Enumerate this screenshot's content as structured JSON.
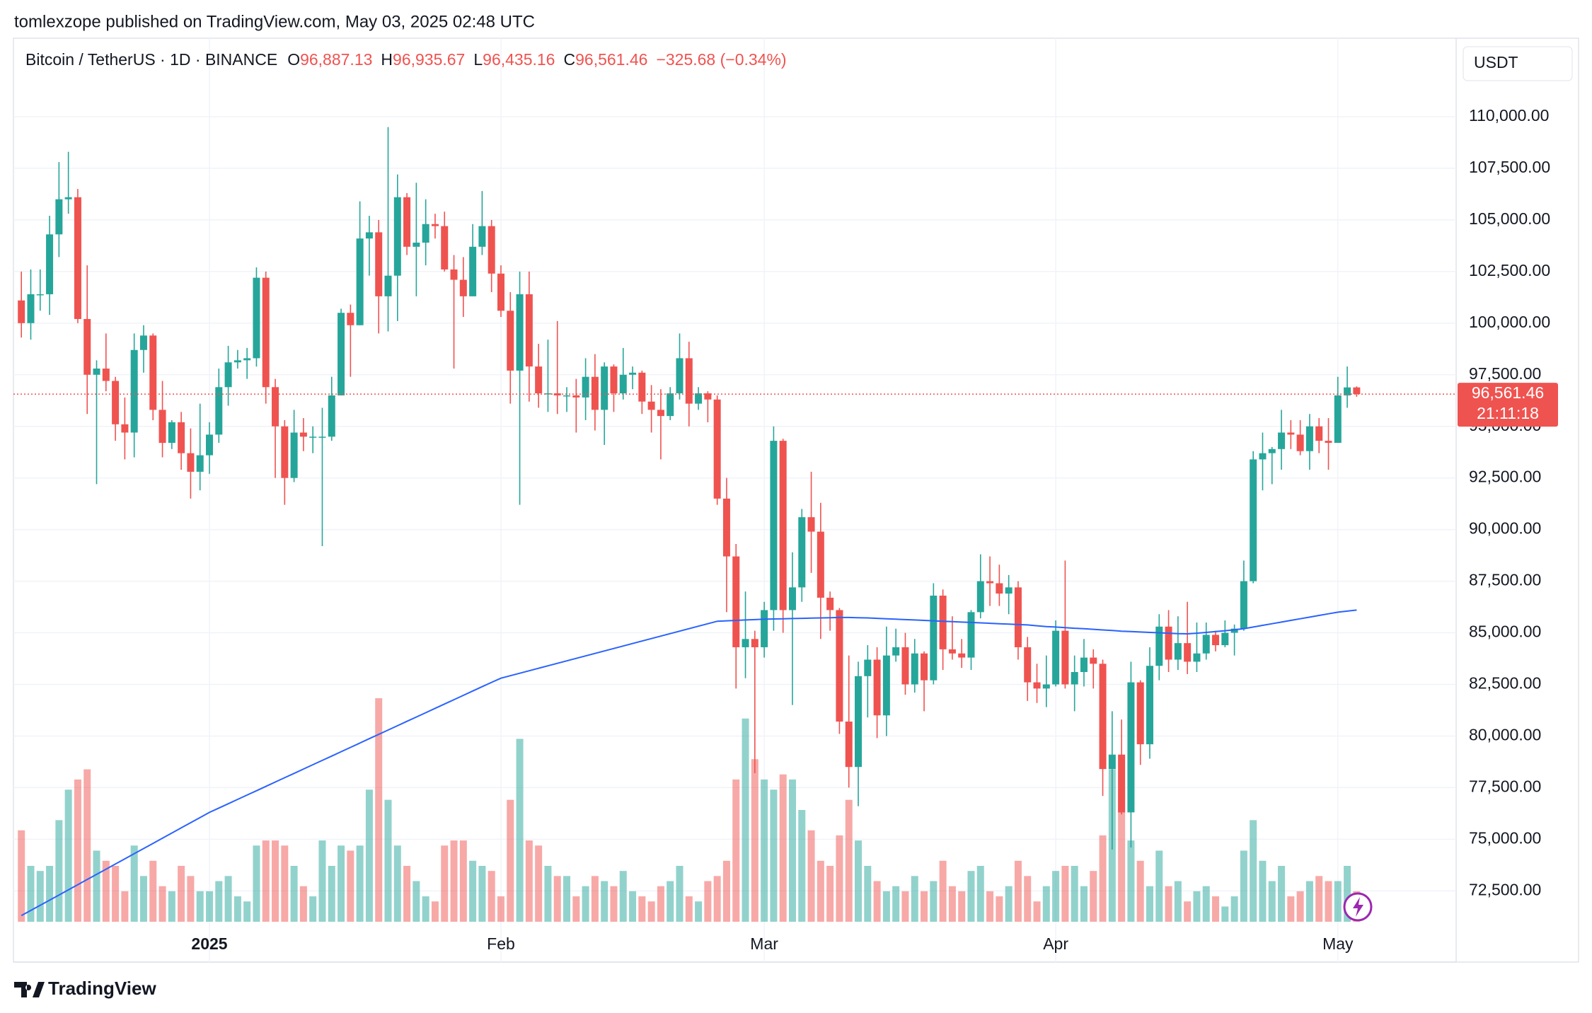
{
  "header": {
    "publisher": "tomlexzope published on TradingView.com, May 03, 2025 02:48 UTC",
    "symbol": "Bitcoin / TetherUS · 1D · BINANCE",
    "ohlc": [
      {
        "label": "O",
        "value": "96,887.13"
      },
      {
        "label": "H",
        "value": "96,935.67"
      },
      {
        "label": "L",
        "value": "96,435.16"
      },
      {
        "label": "C",
        "value": "96,561.46"
      }
    ],
    "change": "−325.68 (−0.34%)"
  },
  "currency": "USDT",
  "footer": {
    "logo": "TradingView"
  },
  "chart_data": {
    "type": "candlestick",
    "up_color": "#26a69a",
    "down_color": "#ef5350",
    "ma_color": "#2962ff",
    "last_price": 96561.46,
    "last_price_label": "96,561.46",
    "countdown": "21:11:18",
    "ylim": [
      69050,
      113700
    ],
    "yticks": [
      {
        "value": 72500,
        "label": "72,500.00"
      },
      {
        "value": 75000,
        "label": "75,000.00"
      },
      {
        "value": 77500,
        "label": "77,500.00"
      },
      {
        "value": 80000,
        "label": "80,000.00"
      },
      {
        "value": 82500,
        "label": "82,500.00"
      },
      {
        "value": 85000,
        "label": "85,000.00"
      },
      {
        "value": 87500,
        "label": "87,500.00"
      },
      {
        "value": 90000,
        "label": "90,000.00"
      },
      {
        "value": 92500,
        "label": "92,500.00"
      },
      {
        "value": 95000,
        "label": "95,000.00"
      },
      {
        "value": 97500,
        "label": "97,500.00"
      },
      {
        "value": 100000,
        "label": "100,000.00"
      },
      {
        "value": 102500,
        "label": "102,500.00"
      },
      {
        "value": 105000,
        "label": "105,000.00"
      },
      {
        "value": 107500,
        "label": "107,500.00"
      },
      {
        "value": 110000,
        "label": "110,000.00"
      }
    ],
    "grid": true,
    "categories": [
      null,
      null,
      null,
      null,
      null,
      null,
      null,
      null,
      null,
      null,
      null,
      null,
      null,
      null,
      null,
      null,
      null,
      null,
      null,
      null,
      "2025",
      null,
      null,
      null,
      null,
      null,
      null,
      null,
      null,
      null,
      null,
      null,
      null,
      null,
      null,
      null,
      null,
      null,
      null,
      null,
      null,
      null,
      null,
      null,
      null,
      null,
      null,
      null,
      null,
      null,
      null,
      "Feb",
      null,
      null,
      null,
      null,
      null,
      null,
      null,
      null,
      null,
      null,
      null,
      null,
      null,
      null,
      null,
      null,
      null,
      null,
      null,
      null,
      null,
      null,
      null,
      null,
      null,
      null,
      null,
      "Mar",
      null,
      null,
      null,
      null,
      null,
      null,
      null,
      null,
      null,
      null,
      null,
      null,
      null,
      null,
      null,
      null,
      null,
      null,
      null,
      null,
      null,
      null,
      null,
      null,
      null,
      null,
      null,
      null,
      null,
      null,
      "Apr",
      null,
      null,
      null,
      null,
      null,
      null,
      null,
      null,
      null,
      null,
      null,
      null,
      null,
      null,
      null,
      null,
      null,
      null,
      null,
      null,
      null,
      null,
      null,
      null,
      null,
      null,
      null,
      null,
      null,
      "May",
      null,
      null
    ],
    "open": [
      101100,
      100000,
      101400,
      101400,
      104300,
      106000,
      106100,
      100200,
      97500,
      97800,
      97200,
      95100,
      94700,
      98700,
      99400,
      95800,
      94200,
      95200,
      93700,
      92800,
      93600,
      94600,
      96900,
      98100,
      98200,
      98300,
      102200,
      96900,
      95000,
      92500,
      94700,
      94500,
      94500,
      94500,
      96500,
      100500,
      99900,
      104100,
      104400,
      101300,
      102300,
      106100,
      103700,
      103900,
      104800,
      104700,
      102600,
      102100,
      101300,
      103700,
      104700,
      102400,
      100600,
      97700,
      101400,
      97900,
      96600,
      96600,
      96500,
      96500,
      96400,
      97400,
      95800,
      97900,
      96600,
      97500,
      97600,
      96200,
      95800,
      95500,
      96600,
      98300,
      96100,
      96600,
      96300,
      91500,
      88700,
      84300,
      84700,
      84300,
      86100,
      94300,
      86100,
      87200,
      90600,
      89900,
      86700,
      86100,
      80700,
      78500,
      82900,
      83700,
      81000,
      83900,
      84300,
      82500,
      84000,
      82700,
      86800,
      84200,
      84000,
      83800,
      86000,
      87500,
      87400,
      86900,
      87200,
      84300,
      82600,
      82300,
      82500,
      85100,
      82500,
      83100,
      83800,
      83500,
      78400,
      79100,
      76300,
      82600,
      79600,
      83400,
      85300,
      83700,
      84500,
      83600,
      84000,
      84900,
      84400,
      85000,
      85200,
      87500,
      93400,
      93700,
      93900,
      94700,
      94600,
      93800,
      95000,
      94300,
      94200,
      96500,
      96887.13
    ],
    "high": [
      102500,
      102600,
      102600,
      105200,
      107800,
      108300,
      106500,
      102800,
      98200,
      99500,
      97400,
      96400,
      99500,
      99900,
      99500,
      97200,
      95300,
      95700,
      94900,
      96100,
      95200,
      97800,
      98900,
      98700,
      98800,
      102700,
      102500,
      97300,
      95300,
      95800,
      95400,
      95000,
      95900,
      97400,
      100700,
      100900,
      105900,
      105200,
      105000,
      109500,
      107200,
      106300,
      106800,
      106000,
      105300,
      105400,
      103300,
      103200,
      104800,
      106400,
      105000,
      102800,
      101500,
      102500,
      102500,
      99000,
      99200,
      100100,
      96900,
      97300,
      98300,
      98500,
      98100,
      98000,
      98800,
      97900,
      97700,
      97000,
      96800,
      96900,
      99500,
      99100,
      96900,
      96700,
      96500,
      92500,
      89300,
      87000,
      85100,
      86500,
      95000,
      94400,
      88900,
      91000,
      92800,
      91300,
      87000,
      86200,
      83900,
      83600,
      84400,
      84300,
      85300,
      85200,
      85000,
      84700,
      84100,
      87400,
      87100,
      85800,
      84700,
      86100,
      88800,
      88700,
      88300,
      87800,
      87500,
      84800,
      83500,
      83900,
      85600,
      88500,
      83900,
      84700,
      84200,
      83700,
      81200,
      80800,
      83600,
      82700,
      84300,
      85900,
      86100,
      85800,
      86500,
      85500,
      85500,
      85100,
      85600,
      85400,
      88500,
      93800,
      94700,
      94000,
      95800,
      95300,
      95300,
      95600,
      95400,
      95400,
      97400,
      97900,
      96935.67
    ],
    "low": [
      99300,
      99200,
      100600,
      100400,
      103200,
      105300,
      100000,
      95600,
      92200,
      96700,
      94300,
      93400,
      93500,
      97600,
      95300,
      93500,
      93900,
      92900,
      91500,
      91900,
      92700,
      94200,
      96000,
      97800,
      97300,
      97900,
      96100,
      92500,
      91200,
      92300,
      93800,
      93700,
      89200,
      94300,
      96500,
      97400,
      99900,
      102300,
      99500,
      99600,
      100100,
      103300,
      101300,
      102800,
      104100,
      102500,
      97800,
      100300,
      101300,
      103300,
      101500,
      100300,
      96100,
      91200,
      96200,
      95900,
      95700,
      95600,
      95700,
      94700,
      95300,
      94800,
      94100,
      95700,
      96300,
      96800,
      95600,
      94700,
      93400,
      95300,
      96300,
      95000,
      95800,
      95200,
      91200,
      86000,
      82300,
      82800,
      78200,
      83800,
      85100,
      85000,
      81500,
      86500,
      87900,
      84700,
      85100,
      80100,
      77500,
      76600,
      80900,
      79900,
      80000,
      83600,
      82000,
      82100,
      81200,
      82500,
      83200,
      83700,
      83300,
      83200,
      85700,
      86300,
      86300,
      85900,
      83700,
      81700,
      81600,
      81400,
      82400,
      82300,
      81200,
      82400,
      82300,
      77100,
      74500,
      76200,
      74600,
      78600,
      78900,
      82700,
      83100,
      83200,
      83000,
      83100,
      83700,
      84100,
      84300,
      83900,
      85100,
      87400,
      91900,
      92200,
      92900,
      93900,
      93600,
      92900,
      93700,
      92900,
      94200,
      95900,
      96435.16
    ],
    "close": [
      100000,
      101400,
      101400,
      104300,
      106000,
      106100,
      100200,
      97500,
      97800,
      97200,
      95100,
      94700,
      98700,
      99400,
      95800,
      94200,
      95200,
      93700,
      92800,
      93600,
      94600,
      96900,
      98100,
      98200,
      98300,
      102200,
      96900,
      95000,
      92500,
      94700,
      94500,
      94500,
      94500,
      96500,
      100500,
      99900,
      104100,
      104400,
      101300,
      102300,
      106100,
      103700,
      103900,
      104800,
      104700,
      102600,
      102100,
      101300,
      103700,
      104700,
      102400,
      100600,
      97700,
      101400,
      97900,
      96600,
      96600,
      96500,
      96500,
      96400,
      97400,
      95800,
      97900,
      96600,
      97500,
      97600,
      96200,
      95800,
      95500,
      96600,
      98300,
      96100,
      96600,
      96300,
      91500,
      88700,
      84300,
      84700,
      84300,
      86100,
      94300,
      86100,
      87200,
      90600,
      89900,
      86700,
      86100,
      80700,
      78500,
      82900,
      83700,
      81000,
      83900,
      84300,
      82500,
      84000,
      82700,
      86800,
      84200,
      84000,
      83800,
      86000,
      87500,
      87400,
      86900,
      87200,
      84300,
      82600,
      82300,
      82500,
      85100,
      82500,
      83100,
      83800,
      83500,
      78400,
      79100,
      76300,
      82600,
      79600,
      83400,
      85300,
      83700,
      84500,
      83600,
      84000,
      84900,
      84400,
      85000,
      85200,
      87500,
      93400,
      93700,
      93900,
      94700,
      94600,
      93800,
      95000,
      94300,
      94200,
      96500,
      96887.13,
      96561.46
    ],
    "volume": [
      90,
      55,
      50,
      55,
      100,
      130,
      140,
      150,
      70,
      60,
      55,
      30,
      75,
      45,
      60,
      35,
      30,
      55,
      45,
      30,
      30,
      40,
      45,
      25,
      20,
      75,
      80,
      80,
      75,
      55,
      35,
      25,
      80,
      55,
      75,
      70,
      75,
      130,
      220,
      120,
      75,
      55,
      40,
      25,
      20,
      75,
      80,
      80,
      60,
      55,
      50,
      25,
      120,
      180,
      80,
      75,
      55,
      45,
      45,
      25,
      35,
      45,
      40,
      35,
      50,
      30,
      25,
      20,
      35,
      40,
      55,
      25,
      20,
      40,
      45,
      60,
      140,
      200,
      160,
      140,
      130,
      145,
      140,
      110,
      90,
      60,
      55,
      85,
      120,
      80,
      55,
      40,
      30,
      35,
      30,
      45,
      30,
      40,
      60,
      35,
      30,
      50,
      55,
      30,
      25,
      35,
      60,
      45,
      20,
      35,
      50,
      55,
      55,
      35,
      50,
      85,
      150,
      130,
      80,
      60,
      35,
      70,
      35,
      40,
      20,
      30,
      35,
      25,
      15,
      25,
      70,
      100,
      60,
      40,
      55,
      25,
      30,
      40,
      45,
      40,
      40,
      55,
      30
    ],
    "ma": [
      71300,
      71550,
      71800,
      72050,
      72300,
      72550,
      72800,
      73050,
      73300,
      73550,
      73800,
      74050,
      74300,
      74550,
      74800,
      75050,
      75300,
      75550,
      75800,
      76050,
      76300,
      76510,
      76720,
      76930,
      77140,
      77350,
      77560,
      77770,
      77980,
      78190,
      78400,
      78610,
      78820,
      79030,
      79240,
      79450,
      79660,
      79870,
      80080,
      80290,
      80500,
      80710,
      80920,
      81130,
      81340,
      81550,
      81760,
      81970,
      82180,
      82390,
      82600,
      82800,
      82920,
      83040,
      83160,
      83280,
      83400,
      83520,
      83640,
      83760,
      83880,
      84000,
      84120,
      84240,
      84360,
      84480,
      84600,
      84720,
      84840,
      84960,
      85080,
      85200,
      85320,
      85440,
      85560,
      85580,
      85600,
      85620,
      85640,
      85660,
      85670,
      85680,
      85690,
      85700,
      85710,
      85720,
      85730,
      85740,
      85740,
      85730,
      85720,
      85700,
      85680,
      85660,
      85640,
      85620,
      85600,
      85580,
      85560,
      85540,
      85520,
      85500,
      85480,
      85460,
      85440,
      85420,
      85400,
      85380,
      85340,
      85300,
      85280,
      85250,
      85220,
      85200,
      85170,
      85140,
      85110,
      85080,
      85060,
      85040,
      85020,
      85000,
      84980,
      84960,
      84950,
      84980,
      85020,
      85060,
      85100,
      85150,
      85200,
      85280,
      85360,
      85440,
      85520,
      85600,
      85680,
      85760,
      85840,
      85920,
      86000,
      86050,
      86100
    ]
  }
}
